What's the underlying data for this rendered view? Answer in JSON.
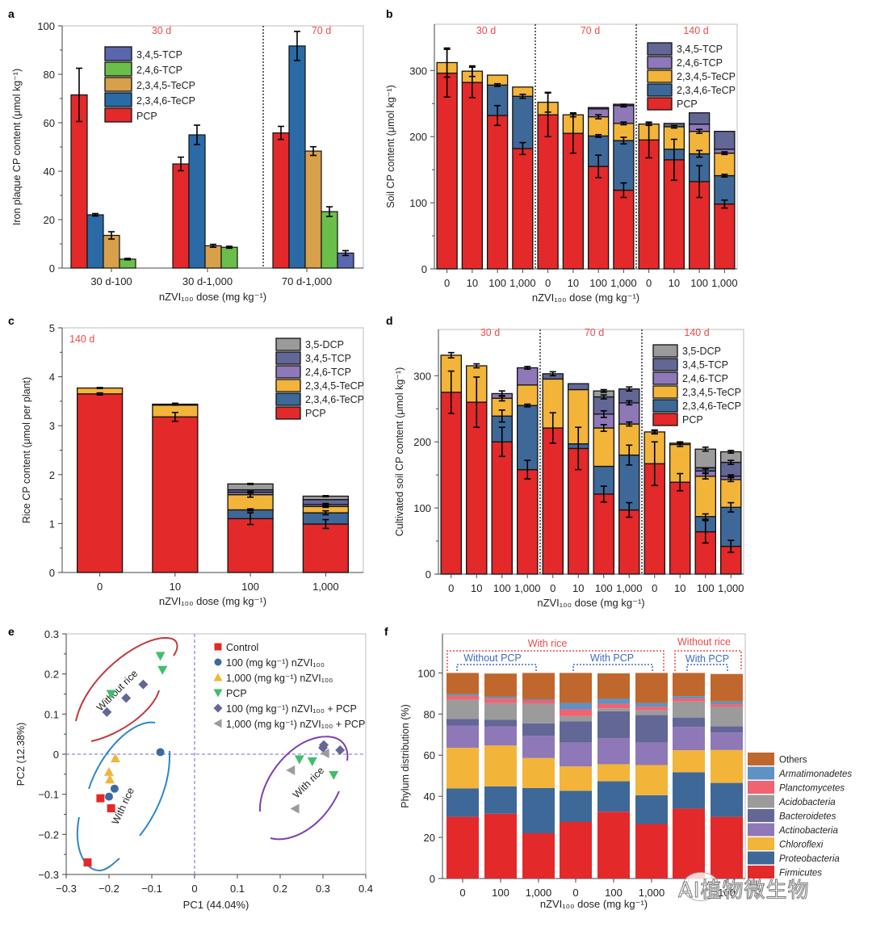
{
  "colors": {
    "PCP": "#e3292a",
    "2,3,4,6-TeCP": "#3e6898",
    "2,3,4,6-TeCP_a": "#2a6aa6",
    "2,3,4,5-TeCP": "#f3b43a",
    "2,3,4,5-TeCP_a": "#d7a04a",
    "2,4,6-TCP": "#8e78b8",
    "2,4,6-TCP_a": "#6abf4b",
    "3,4,5-TCP": "#626796",
    "3,4,5-TCP_a": "#5a66ad",
    "3,5-DCP": "#9b9b9b",
    "label_red": "#f04a4a",
    "label_blue": "#3d6ac8"
  },
  "chart_data": [
    {
      "id": "a",
      "panel_letter": "a",
      "type": "bar",
      "grouped": true,
      "ylabel": "Iron plaque CP content (μmol kg⁻¹)",
      "xlabel": "nZVI₁₀₀ dose (mg kg⁻¹)",
      "ylim": [
        0,
        100
      ],
      "yticks": [
        0,
        20,
        40,
        60,
        80,
        100
      ],
      "categories": [
        "30 d-100",
        "30 d-1,000",
        "70 d-1,000"
      ],
      "period_labels": [
        "30 d",
        "70 d"
      ],
      "legend": [
        "3,4,5-TCP",
        "2,4,6-TCP",
        "2,3,4,5-TeCP",
        "2,3,4,6-TeCP",
        "PCP"
      ],
      "legend_position": "top-left",
      "groups": [
        {
          "category": "30 d-100",
          "bars": [
            {
              "series": "PCP",
              "value": 71.5,
              "err": 11
            },
            {
              "series": "2,3,4,6-TeCP",
              "value": 22,
              "err": 0.5
            },
            {
              "series": "2,3,4,5-TeCP",
              "value": 13.5,
              "err": 1.5
            },
            {
              "series": "2,4,6-TCP",
              "value": 3.7,
              "err": 0.3
            }
          ]
        },
        {
          "category": "30 d-1,000",
          "bars": [
            {
              "series": "PCP",
              "value": 43,
              "err": 2.8
            },
            {
              "series": "2,3,4,6-TeCP",
              "value": 55,
              "err": 4
            },
            {
              "series": "2,3,4,5-TeCP",
              "value": 9.2,
              "err": 0.6
            },
            {
              "series": "2,4,6-TCP",
              "value": 8.6,
              "err": 0.4
            }
          ]
        },
        {
          "category": "70 d-1,000",
          "bars": [
            {
              "series": "PCP",
              "value": 55.8,
              "err": 2.7
            },
            {
              "series": "2,3,4,6-TeCP",
              "value": 91.7,
              "err": 6
            },
            {
              "series": "2,3,4,5-TeCP",
              "value": 48.3,
              "err": 1.8
            },
            {
              "series": "2,4,6-TCP",
              "value": 23.3,
              "err": 2
            },
            {
              "series": "3,4,5-TCP",
              "value": 6.2,
              "err": 1
            }
          ]
        }
      ]
    },
    {
      "id": "b",
      "panel_letter": "b",
      "type": "bar",
      "stacked": true,
      "ylabel": "Soil CP content (μmol kg⁻¹)",
      "xlabel": "nZVI₁₀₀ dose (mg kg⁻¹)",
      "ylim": [
        0,
        370
      ],
      "yticks": [
        0,
        100,
        200,
        300
      ],
      "categories": [
        "0",
        "10",
        "100",
        "1,000",
        "0",
        "10",
        "100",
        "1,000",
        "0",
        "10",
        "100",
        "1,000"
      ],
      "period_labels": [
        "30 d",
        "70 d",
        "140 d"
      ],
      "legend": [
        "3,4,5-TCP",
        "2,4,6-TCP",
        "2,3,4,5-TeCP",
        "2,3,4,6-TeCP",
        "PCP"
      ],
      "legend_position": "top-right",
      "series_order": [
        "PCP",
        "2,3,4,6-TeCP",
        "2,3,4,5-TeCP",
        "2,4,6-TCP",
        "3,4,5-TCP"
      ],
      "series": [
        {
          "name": "PCP",
          "values": [
            296,
            282,
            232,
            182,
            233,
            205,
            155,
            119,
            195,
            165,
            132,
            98
          ],
          "err": [
            36,
            23,
            15,
            9,
            33,
            30,
            17,
            11,
            27,
            31,
            24,
            6
          ]
        },
        {
          "name": "2,3,4,6-TeCP",
          "values": [
            0,
            0,
            46,
            79,
            0,
            0,
            46,
            75,
            0,
            16,
            42,
            43
          ],
          "err": [
            0,
            0,
            2,
            3,
            0,
            0,
            2,
            5,
            0,
            0,
            5,
            2
          ]
        },
        {
          "name": "2,3,4,5-TeCP",
          "values": [
            16,
            17,
            15,
            14,
            19,
            28,
            29,
            26,
            24,
            34,
            34,
            34
          ],
          "err": [
            0,
            0,
            0,
            0,
            0,
            0,
            3,
            2,
            0,
            2,
            3,
            2
          ]
        },
        {
          "name": "2,4,6-TCP",
          "values": [
            0,
            0,
            0,
            0,
            0,
            0,
            12,
            27,
            0,
            0,
            11,
            6
          ],
          "err": [
            0,
            0,
            0,
            0,
            0,
            0,
            0,
            2,
            0,
            0,
            0,
            0
          ]
        },
        {
          "name": "3,4,5-TCP",
          "values": [
            0,
            0,
            0,
            0,
            0,
            0,
            2,
            2,
            0,
            5,
            17,
            27
          ],
          "err": [
            22,
            8,
            0,
            0,
            15,
            3,
            0,
            0,
            2,
            0,
            0,
            0
          ]
        }
      ]
    },
    {
      "id": "c",
      "panel_letter": "c",
      "type": "bar",
      "stacked": true,
      "ylabel": "Rice  CP content (μmol per plant)",
      "xlabel": "nZVI₁₀₀ dose (mg kg⁻¹)",
      "ylim": [
        0,
        5
      ],
      "yticks": [
        0,
        1,
        2,
        3,
        4,
        5
      ],
      "categories": [
        "0",
        "10",
        "100",
        "1,000"
      ],
      "period_labels": [
        "140 d"
      ],
      "legend": [
        "3,5-DCP",
        "3,4,5-TCP",
        "2,4,6-TCP",
        "2,3,4,5-TeCP",
        "2,3,4,6-TeCP",
        "PCP"
      ],
      "legend_position": "top-right",
      "series_order": [
        "PCP",
        "2,3,4,6-TeCP",
        "2,3,4,5-TeCP",
        "2,4,6-TCP",
        "3,4,5-TCP",
        "3,5-DCP"
      ],
      "series": [
        {
          "name": "PCP",
          "values": [
            3.65,
            3.18,
            1.1,
            0.99
          ],
          "err": [
            0.02,
            0.09,
            0.12,
            0.09
          ]
        },
        {
          "name": "2,3,4,6-TeCP",
          "values": [
            0,
            0,
            0.18,
            0.23
          ],
          "err": [
            0,
            0,
            0.02,
            0.04
          ]
        },
        {
          "name": "2,3,4,5-TeCP",
          "values": [
            0.12,
            0.24,
            0.31,
            0.13
          ],
          "err": [
            0,
            0,
            0.05,
            0.02
          ]
        },
        {
          "name": "2,4,6-TCP",
          "values": [
            0,
            0,
            0.05,
            0.04
          ],
          "err": [
            0,
            0,
            0.02,
            0.02
          ]
        },
        {
          "name": "3,4,5-TCP",
          "values": [
            0,
            0,
            0.05,
            0.1
          ],
          "err": [
            0,
            0,
            0,
            0
          ]
        },
        {
          "name": "3,5-DCP",
          "values": [
            0,
            0.02,
            0.12,
            0.07
          ],
          "err": [
            0.01,
            0.02,
            0.01,
            0.01
          ]
        }
      ]
    },
    {
      "id": "d",
      "panel_letter": "d",
      "type": "bar",
      "stacked": true,
      "ylabel": "Cultivated soil CP content (μmol kg⁻¹)",
      "xlabel": "nZVI₁₀₀ dose (mg kg⁻¹)",
      "ylim": [
        0,
        370
      ],
      "yticks": [
        0,
        100,
        200,
        300
      ],
      "categories": [
        "0",
        "10",
        "100",
        "1,000",
        "0",
        "10",
        "100",
        "1,000",
        "0",
        "10",
        "100",
        "1,000"
      ],
      "period_labels": [
        "30 d",
        "70 d",
        "140 d"
      ],
      "legend": [
        "3,5-DCP",
        "3,4,5-TCP",
        "2,4,6-TCP",
        "2,3,4,5-TeCP",
        "2,3,4,6-TeCP",
        "PCP"
      ],
      "legend_position": "top-right",
      "series_order": [
        "PCP",
        "2,3,4,6-TeCP",
        "2,3,4,5-TeCP",
        "2,4,6-TCP",
        "3,4,5-TCP",
        "3,5-DCP"
      ],
      "series": [
        {
          "name": "PCP",
          "values": [
            275,
            260,
            200,
            158,
            221,
            190,
            121,
            97,
            167,
            139,
            64,
            42
          ],
          "err": [
            32,
            38,
            22,
            14,
            23,
            32,
            12,
            11,
            33,
            13,
            17,
            9
          ]
        },
        {
          "name": "2,3,4,6-TeCP",
          "values": [
            0,
            0,
            39,
            97,
            0,
            7,
            42,
            83,
            0,
            0,
            23,
            59
          ],
          "err": [
            0,
            0,
            9,
            2,
            0,
            0,
            0,
            15,
            0,
            0,
            4,
            7
          ]
        },
        {
          "name": "2,3,4,5-TeCP",
          "values": [
            56,
            55,
            27,
            31,
            74,
            82,
            58,
            47,
            48,
            57,
            61,
            42
          ],
          "err": [
            4,
            3,
            4,
            0,
            0,
            0,
            5,
            3,
            3,
            3,
            4,
            3
          ]
        },
        {
          "name": "2,4,6-TCP",
          "values": [
            0,
            0,
            7,
            26,
            0,
            0,
            21,
            32,
            0,
            0,
            8,
            5
          ],
          "err": [
            0,
            0,
            4,
            2,
            0,
            0,
            5,
            3,
            0,
            0,
            3,
            2
          ]
        },
        {
          "name": "3,4,5-TCP",
          "values": [
            0,
            0,
            0,
            0,
            8,
            9,
            26,
            21,
            0,
            0,
            5,
            21
          ],
          "err": [
            0,
            0,
            0,
            0,
            3,
            0,
            3,
            3,
            0,
            0,
            0,
            3
          ]
        },
        {
          "name": "3,5-DCP",
          "values": [
            0,
            0,
            0,
            0,
            0,
            0,
            9,
            0,
            0,
            2,
            28,
            16
          ],
          "err": [
            0,
            0,
            0,
            0,
            0,
            0,
            2,
            0,
            2,
            2,
            3,
            2
          ]
        }
      ]
    },
    {
      "id": "e",
      "panel_letter": "e",
      "type": "scatter",
      "xlabel": "PC1 (44.04%)",
      "ylabel": "PC2 (12.38%)",
      "xlim": [
        -0.3,
        0.4
      ],
      "ylim": [
        -0.3,
        0.3
      ],
      "xticks": [
        -0.3,
        -0.2,
        -0.1,
        0,
        0.1,
        0.2,
        0.3,
        0.4
      ],
      "xtick_labels": [
        "−0.3",
        "−0.2",
        "−0.1",
        "0",
        "0.1",
        "0.2",
        "0.3",
        "0.4"
      ],
      "yticks": [
        -0.3,
        -0.2,
        -0.1,
        0,
        0.1,
        0.2,
        0.3
      ],
      "ytick_labels": [
        "−0.3",
        "−0.2",
        "−0.1",
        "0",
        "0.1",
        "0.2",
        "0.3"
      ],
      "legend_position": "top-right",
      "series": [
        {
          "name": "Control",
          "marker": "square",
          "color": "#e3292a",
          "points": [
            [
              -0.25,
              -0.27
            ],
            [
              -0.22,
              -0.11
            ],
            [
              -0.195,
              -0.135
            ]
          ]
        },
        {
          "name": "100 (mg kg⁻¹) nZVI₁₀₀",
          "marker": "circle",
          "color": "#3a6aa0",
          "points": [
            [
              -0.08,
              0.005
            ],
            [
              -0.2,
              -0.106
            ],
            [
              -0.187,
              -0.086
            ]
          ]
        },
        {
          "name": "1,000 (mg kg⁻¹) nZVI₁₀₀",
          "marker": "triangle-up",
          "color": "#f3b43a",
          "points": [
            [
              -0.185,
              -0.01
            ],
            [
              -0.2,
              -0.044
            ],
            [
              -0.198,
              -0.063
            ]
          ]
        },
        {
          "name": "PCP",
          "marker": "triangle-down",
          "color": "#3fbf6a",
          "points": [
            [
              -0.08,
              0.245
            ],
            [
              -0.075,
              0.21
            ],
            [
              -0.195,
              0.15
            ],
            [
              0.245,
              -0.013
            ],
            [
              0.275,
              -0.018
            ],
            [
              0.325,
              -0.052
            ]
          ]
        },
        {
          "name": "100 (mg kg⁻¹) nZVI₁₀₀ + PCP",
          "marker": "diamond",
          "color": "#626796",
          "points": [
            [
              -0.205,
              0.105
            ],
            [
              -0.16,
              0.14
            ],
            [
              -0.12,
              0.174
            ],
            [
              0.3,
              0.016
            ],
            [
              0.302,
              0.023
            ],
            [
              0.34,
              0.01
            ]
          ]
        },
        {
          "name": "1,000 (mg kg⁻¹) nZVI₁₀₀ + PCP",
          "marker": "triangle-left",
          "color": "#9b9b9b",
          "points": [
            [
              0.225,
              -0.04
            ],
            [
              0.235,
              -0.136
            ],
            [
              0.305,
              0.002
            ]
          ]
        }
      ],
      "annotations": [
        {
          "text": "Without rice",
          "color": "#c0393b"
        },
        {
          "text": "With rice",
          "color": "#2e86c8"
        },
        {
          "text": "With rice",
          "color": "#7d3fb0"
        }
      ]
    },
    {
      "id": "f",
      "panel_letter": "f",
      "type": "bar",
      "stacked": true,
      "ylabel": "Phylum distribution (%)",
      "xlabel": "nZVI₁₀₀ dose (mg kg⁻¹)",
      "ylim": [
        0,
        100
      ],
      "yticks": [
        0,
        20,
        40,
        60,
        80,
        100
      ],
      "categories": [
        "0",
        "100",
        "1,000",
        "0",
        "100",
        "1,000",
        "0",
        "100"
      ],
      "group_labels": {
        "with_rice": "With rice",
        "without_rice": "Without rice",
        "without_pcp": "Without PCP",
        "with_pcp_1": "With PCP",
        "with_pcp_2": "With PCP"
      },
      "legend_position": "right",
      "series_order": [
        "Firmicutes",
        "Proteobacteria",
        "Chloroflexi",
        "Actinobacteria",
        "Bacteroidetes",
        "Acidobacteria",
        "Planctomycetes",
        "Armatimonadetes",
        "Others"
      ],
      "series": [
        {
          "name": "Firmicutes",
          "color": "#e3292a",
          "values": [
            30,
            31.5,
            22,
            27.5,
            32.5,
            26.5,
            34,
            30
          ]
        },
        {
          "name": "Proteobacteria",
          "color": "#3e6898",
          "values": [
            13.8,
            13.3,
            22,
            15.2,
            14.8,
            14,
            17.7,
            16.5
          ]
        },
        {
          "name": "Chloroflexi",
          "color": "#f3b43a",
          "values": [
            19.8,
            19.9,
            14.6,
            11.8,
            8.3,
            14.7,
            10.7,
            16
          ]
        },
        {
          "name": "Actinobacteria",
          "color": "#8e78b8",
          "values": [
            10.8,
            9.2,
            10.9,
            11.6,
            12.6,
            10.9,
            11.4,
            8.5
          ]
        },
        {
          "name": "Bacteroidetes",
          "color": "#626796",
          "values": [
            3.2,
            3.3,
            6,
            10.4,
            13.2,
            13.4,
            4.5,
            3
          ]
        },
        {
          "name": "Acidobacteria",
          "color": "#9b9b9b",
          "values": [
            9.3,
            8.1,
            9.5,
            2.5,
            1.4,
            2.3,
            7.8,
            9.5
          ]
        },
        {
          "name": "Planctomycetes",
          "color": "#ef6470",
          "values": [
            1.9,
            2.2,
            1.6,
            3.3,
            2.2,
            1.7,
            1.5,
            1.3
          ]
        },
        {
          "name": "Armatimonadetes",
          "color": "#5f92c4",
          "values": [
            0.8,
            0.9,
            0.6,
            3.1,
            2.4,
            1.9,
            1.1,
            1.3
          ]
        },
        {
          "name": "Others",
          "color": "#c0672d",
          "values": [
            10.4,
            11.3,
            12.8,
            14.6,
            12.4,
            14.6,
            11.3,
            13.4
          ]
        }
      ],
      "legend": [
        "Others",
        "Armatimonadetes",
        "Planctomycetes",
        "Acidobacteria",
        "Bacteroidetes",
        "Actinobacteria",
        "Chloroflexi",
        "Proteobacteria",
        "Firmicutes"
      ]
    }
  ],
  "watermark": "AI植物微生物"
}
